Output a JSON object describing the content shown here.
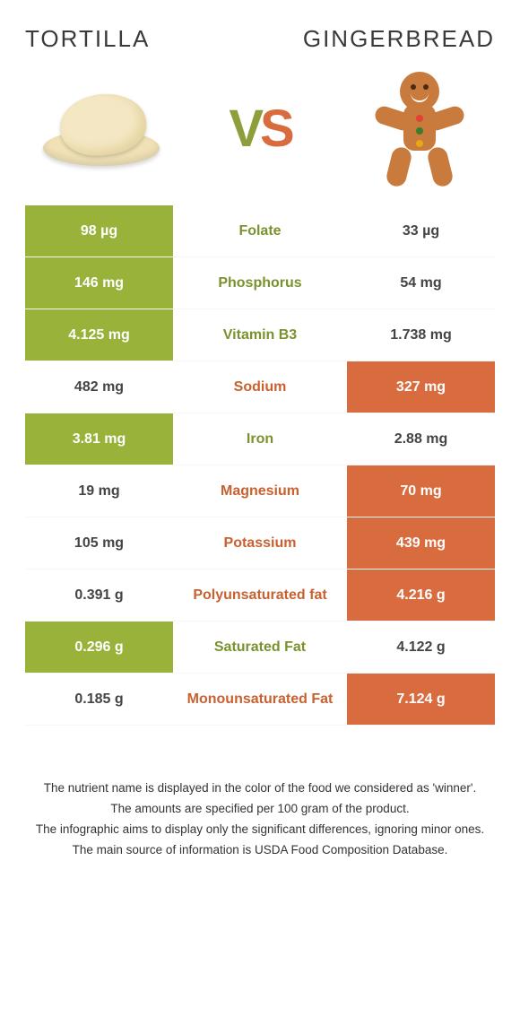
{
  "header": {
    "left": "TORTILLA",
    "right": "GINGERBREAD"
  },
  "vs": {
    "v": "V",
    "s": "S"
  },
  "colors": {
    "left_winner_bg": "#98b23a",
    "right_winner_bg": "#d96c3f",
    "left_text": "#7a922e",
    "right_text": "#c8612f"
  },
  "rows": [
    {
      "nutrient": "Folate",
      "left": "98 µg",
      "right": "33 µg",
      "winner": "left"
    },
    {
      "nutrient": "Phosphorus",
      "left": "146 mg",
      "right": "54 mg",
      "winner": "left"
    },
    {
      "nutrient": "Vitamin B3",
      "left": "4.125 mg",
      "right": "1.738 mg",
      "winner": "left"
    },
    {
      "nutrient": "Sodium",
      "left": "482 mg",
      "right": "327 mg",
      "winner": "right"
    },
    {
      "nutrient": "Iron",
      "left": "3.81 mg",
      "right": "2.88 mg",
      "winner": "left"
    },
    {
      "nutrient": "Magnesium",
      "left": "19 mg",
      "right": "70 mg",
      "winner": "right"
    },
    {
      "nutrient": "Potassium",
      "left": "105 mg",
      "right": "439 mg",
      "winner": "right"
    },
    {
      "nutrient": "Polyunsaturated fat",
      "left": "0.391 g",
      "right": "4.216 g",
      "winner": "right"
    },
    {
      "nutrient": "Saturated Fat",
      "left": "0.296 g",
      "right": "4.122 g",
      "winner": "left"
    },
    {
      "nutrient": "Monounsaturated Fat",
      "left": "0.185 g",
      "right": "7.124 g",
      "winner": "right"
    }
  ],
  "footnotes": [
    "The nutrient name is displayed in the color of the food we considered as 'winner'.",
    "The amounts are specified per 100 gram of the product.",
    "The infographic aims to display only the significant differences, ignoring minor ones.",
    "The main source of information is USDA Food Composition Database."
  ]
}
